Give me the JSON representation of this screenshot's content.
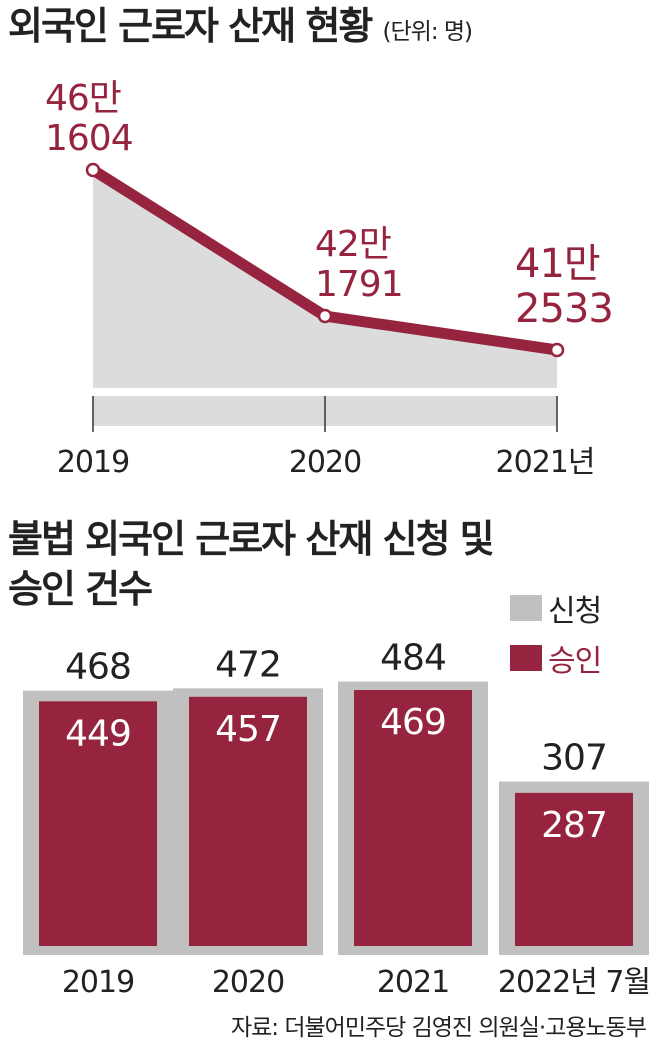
{
  "chart_data": [
    {
      "type": "area",
      "title": "외국인 근로자 산재 현황",
      "unit": "(단위: 명)",
      "categories": [
        "2019",
        "2020",
        "2021년"
      ],
      "values": [
        461604,
        421791,
        412533
      ],
      "value_labels": [
        [
          "46만",
          "1604"
        ],
        [
          "42만",
          "1791"
        ],
        [
          "41만",
          "2533"
        ]
      ],
      "colors": {
        "line": "#96243f",
        "fill": "#dcdcdc"
      }
    },
    {
      "type": "bar",
      "title": "불법 외국인 근로자 산재 신청 및 승인 건수",
      "title_lines": [
        "불법 외국인 근로자 산재 신청 및",
        "승인 건수"
      ],
      "categories": [
        "2019",
        "2020",
        "2021",
        "2022년 7월"
      ],
      "legend_position": "top-right",
      "series": [
        {
          "name": "신청",
          "values": [
            468,
            472,
            484,
            307
          ],
          "color": "#c0c0c0"
        },
        {
          "name": "승인",
          "values": [
            449,
            457,
            469,
            287
          ],
          "color": "#96243f"
        }
      ]
    }
  ],
  "source": "자료: 더불어민주당 김영진 의원실·고용노동부"
}
